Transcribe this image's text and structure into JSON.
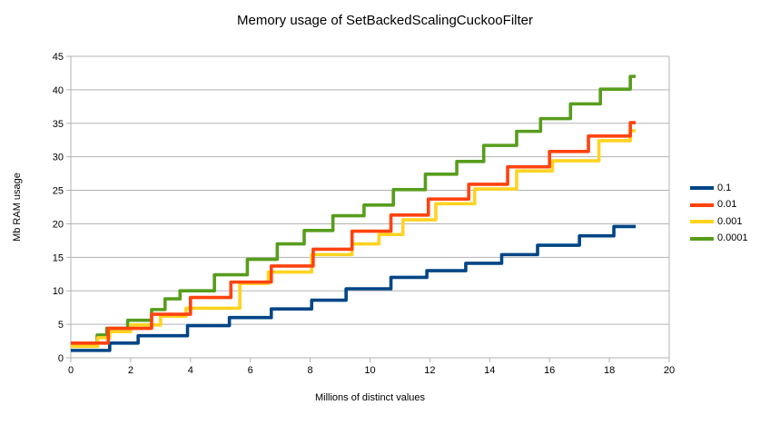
{
  "title": "Memory usage of SetBackedScalingCuckooFilter",
  "chart_data": {
    "type": "line",
    "subtype": "step-after",
    "title": "Memory usage of SetBackedScalingCuckooFilter",
    "xlabel": "Millions of distinct values",
    "ylabel": "Mb RAM usage",
    "xlim": [
      0,
      20
    ],
    "ylim": [
      0,
      45
    ],
    "x_ticks": [
      0,
      2,
      4,
      6,
      8,
      10,
      12,
      14,
      16,
      18,
      20
    ],
    "y_ticks": [
      0,
      5,
      10,
      15,
      20,
      25,
      30,
      35,
      40,
      45
    ],
    "grid": "horizontal",
    "grid_color": "#b3b3b3",
    "axis_color": "#b3b3b3",
    "legend_position": "right",
    "x_end": 18.88,
    "series": [
      {
        "name": "0.1",
        "color": "#004586",
        "steps": [
          [
            0,
            1.1
          ],
          [
            1.3,
            2.2
          ],
          [
            2.25,
            3.3
          ],
          [
            3.9,
            4.8
          ],
          [
            5.3,
            6.0
          ],
          [
            6.7,
            7.3
          ],
          [
            8.05,
            8.6
          ],
          [
            9.2,
            10.3
          ],
          [
            10.7,
            12.0
          ],
          [
            11.9,
            13.0
          ],
          [
            13.2,
            14.1
          ],
          [
            14.4,
            15.4
          ],
          [
            15.6,
            16.8
          ],
          [
            17.0,
            18.2
          ],
          [
            18.15,
            19.6
          ]
        ]
      },
      {
        "name": "0.01",
        "color": "#ff420e",
        "steps": [
          [
            0,
            2.2
          ],
          [
            1.25,
            4.4
          ],
          [
            2.7,
            6.5
          ],
          [
            4.0,
            9.0
          ],
          [
            5.35,
            11.3
          ],
          [
            6.7,
            13.7
          ],
          [
            8.1,
            16.2
          ],
          [
            9.4,
            18.9
          ],
          [
            10.7,
            21.3
          ],
          [
            11.95,
            23.7
          ],
          [
            13.3,
            25.9
          ],
          [
            14.6,
            28.5
          ],
          [
            16.0,
            30.8
          ],
          [
            17.3,
            33.1
          ],
          [
            18.7,
            35.1
          ]
        ]
      },
      {
        "name": "0.001",
        "color": "#ffd320",
        "steps": [
          [
            0,
            1.7
          ],
          [
            0.9,
            3.0
          ],
          [
            1.3,
            3.9
          ],
          [
            2.0,
            4.9
          ],
          [
            3.0,
            6.2
          ],
          [
            3.85,
            7.4
          ],
          [
            5.65,
            11.1
          ],
          [
            6.6,
            12.8
          ],
          [
            8.05,
            15.4
          ],
          [
            9.4,
            17.0
          ],
          [
            10.3,
            18.4
          ],
          [
            11.1,
            20.6
          ],
          [
            12.2,
            23.0
          ],
          [
            13.5,
            25.2
          ],
          [
            14.9,
            27.9
          ],
          [
            16.1,
            29.4
          ],
          [
            17.65,
            32.4
          ],
          [
            18.7,
            33.9
          ]
        ]
      },
      {
        "name": "0.0001",
        "color": "#579d1c",
        "steps": [
          [
            0,
            1.9
          ],
          [
            0.88,
            3.4
          ],
          [
            1.2,
            4.4
          ],
          [
            1.9,
            5.6
          ],
          [
            2.7,
            7.2
          ],
          [
            3.15,
            8.8
          ],
          [
            3.65,
            10.0
          ],
          [
            4.8,
            12.4
          ],
          [
            5.9,
            14.7
          ],
          [
            6.9,
            17.0
          ],
          [
            7.8,
            19.0
          ],
          [
            8.76,
            21.2
          ],
          [
            9.8,
            22.8
          ],
          [
            10.78,
            25.1
          ],
          [
            11.85,
            27.4
          ],
          [
            12.9,
            29.3
          ],
          [
            13.8,
            31.7
          ],
          [
            14.9,
            33.8
          ],
          [
            15.7,
            35.7
          ],
          [
            16.7,
            37.9
          ],
          [
            17.7,
            40.1
          ],
          [
            18.7,
            42.0
          ]
        ]
      }
    ],
    "draw_order": [
      3,
      2,
      0,
      1
    ]
  }
}
